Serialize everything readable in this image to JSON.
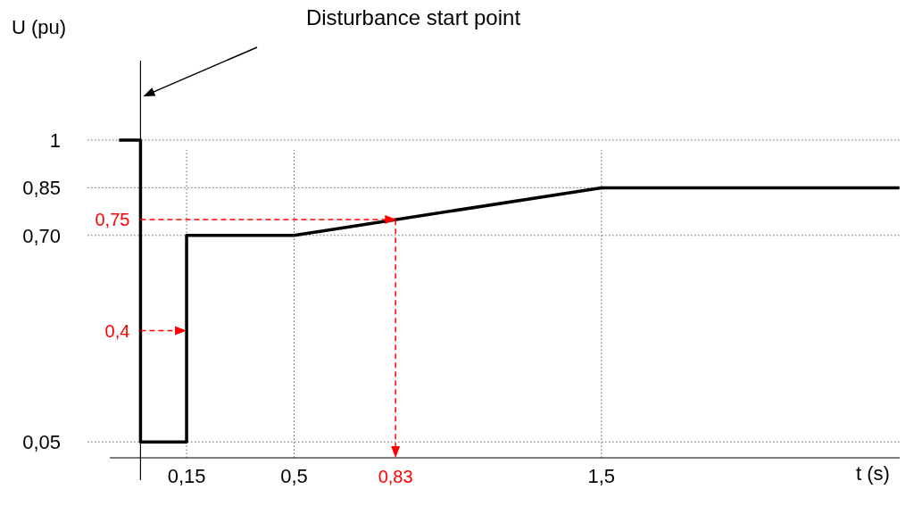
{
  "chart_data": {
    "type": "line",
    "xlabel": "t (s)",
    "ylabel": "U (pu)",
    "x": [
      -0.07,
      0,
      0,
      0.15,
      0.15,
      0.5,
      1.5,
      2.47
    ],
    "series": [
      {
        "color": "#000000",
        "values": [
          1,
          1,
          0.05,
          0.05,
          0.7,
          0.7,
          0.85,
          0.85
        ]
      }
    ],
    "xlim": [
      -0.1,
      2.5
    ],
    "ylim": [
      0,
      1.25
    ],
    "xticks": [
      {
        "value": 0.15,
        "label": "0,15"
      },
      {
        "value": 0.5,
        "label": "0,5"
      },
      {
        "value": 1.5,
        "label": "1,5"
      }
    ],
    "yticks": [
      {
        "value": 0.05,
        "label": "0,05"
      },
      {
        "value": 0.7,
        "label": "0,70"
      },
      {
        "value": 0.85,
        "label": "0,85"
      },
      1
    ],
    "grid": true,
    "line_style": "solid",
    "marker": "none",
    "annotations": [
      "Disturbance start point"
    ],
    "ref_lines": [
      {
        "axis": "y",
        "value": 0.75,
        "label": "0,75",
        "color": "#ff0000",
        "line_style": "dashed"
      },
      {
        "axis": "y",
        "value": 0.4,
        "label": "0,4",
        "color": "#ff0000",
        "line_style": "dashed"
      },
      {
        "axis": "x",
        "value": 0.83,
        "label": "0,83",
        "color": "#ff0000",
        "line_style": "dashed"
      }
    ]
  }
}
